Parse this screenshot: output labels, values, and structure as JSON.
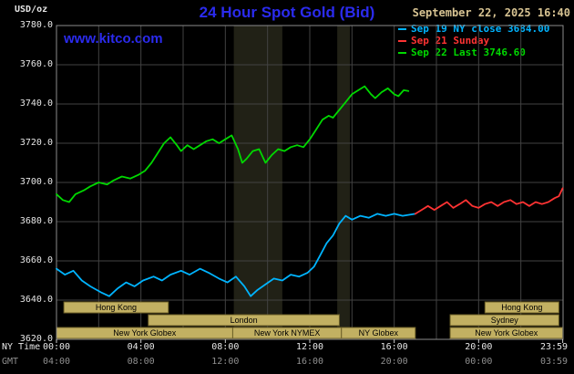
{
  "header": {
    "units_label": "USD/oz",
    "title": "24 Hour Spot Gold (Bid)",
    "datetime": "September 22, 2025 16:40",
    "watermark": "www.kitco.com"
  },
  "colors": {
    "background": "#000000",
    "plot_border": "#8c8c8c",
    "grid": "#424242",
    "band": "#212116",
    "title_blue": "#2b2bee",
    "datetime_tan": "#d7c392",
    "axis_text": "#e6e6e6",
    "gmt_text": "#8f8f8f",
    "session_fill": "#c2b062",
    "session_border": "#6e6128",
    "session_text": "#000000",
    "tick": "#cccccc"
  },
  "legend": [
    {
      "label": "Sep 19 NY close 3684.00",
      "color": "#00b4ff"
    },
    {
      "label": "Sep 21 Sunday",
      "color": "#ff3333"
    },
    {
      "label": "Sep 22 Last 3746.60",
      "color": "#00d800"
    }
  ],
  "chart_data": {
    "type": "line",
    "title": "24 Hour Spot Gold (Bid)",
    "ylabel": "USD/oz",
    "xlabel_rows": [
      "NY Time",
      "GMT"
    ],
    "xlim": [
      0,
      24
    ],
    "ylim": [
      3620,
      3780
    ],
    "y_tick_step": 20,
    "x_grid_step_hours": 2,
    "grid": true,
    "legend_position": "top-right",
    "y_tick_labels": [
      "3780.0",
      "3760.0",
      "3740.0",
      "3720.0",
      "3700.0",
      "3680.0",
      "3660.0",
      "3640.0",
      "3620.0"
    ],
    "x_tick_hours": [
      0,
      4,
      8,
      12,
      16,
      20,
      23.983
    ],
    "x_tick_labels_ny": [
      "00:00",
      "04:00",
      "08:00",
      "12:00",
      "16:00",
      "20:00",
      "23:59"
    ],
    "x_tick_labels_gmt": [
      "04:00",
      "08:00",
      "12:00",
      "16:00",
      "20:00",
      "00:00",
      "03:59"
    ],
    "series": [
      {
        "id": "sep19",
        "name": "Sep 19 NY close 3684.00",
        "color": "#00b4ff",
        "points": [
          [
            0,
            3656
          ],
          [
            0.4,
            3653
          ],
          [
            0.8,
            3655
          ],
          [
            1.2,
            3650
          ],
          [
            1.6,
            3647
          ],
          [
            2.1,
            3644
          ],
          [
            2.5,
            3642
          ],
          [
            2.9,
            3646
          ],
          [
            3.3,
            3649
          ],
          [
            3.7,
            3647
          ],
          [
            4.1,
            3650
          ],
          [
            4.6,
            3652
          ],
          [
            5,
            3650
          ],
          [
            5.4,
            3653
          ],
          [
            5.9,
            3655
          ],
          [
            6.3,
            3653
          ],
          [
            6.8,
            3656
          ],
          [
            7.2,
            3654
          ],
          [
            7.7,
            3651
          ],
          [
            8.1,
            3649
          ],
          [
            8.5,
            3652
          ],
          [
            8.9,
            3647
          ],
          [
            9.2,
            3642
          ],
          [
            9.5,
            3645
          ],
          [
            9.9,
            3648
          ],
          [
            10.3,
            3651
          ],
          [
            10.7,
            3650
          ],
          [
            11.1,
            3653
          ],
          [
            11.5,
            3652
          ],
          [
            11.9,
            3654
          ],
          [
            12.2,
            3657
          ],
          [
            12.5,
            3663
          ],
          [
            12.8,
            3669
          ],
          [
            13.1,
            3673
          ],
          [
            13.4,
            3679
          ],
          [
            13.7,
            3683
          ],
          [
            14,
            3681
          ],
          [
            14.4,
            3683
          ],
          [
            14.8,
            3682
          ],
          [
            15.2,
            3684
          ],
          [
            15.6,
            3683
          ],
          [
            16,
            3684
          ],
          [
            16.4,
            3683
          ],
          [
            17,
            3684
          ]
        ]
      },
      {
        "id": "sep21",
        "name": "Sep 21 Sunday",
        "color": "#ff3333",
        "points": [
          [
            17,
            3684
          ],
          [
            17.3,
            3686
          ],
          [
            17.6,
            3688
          ],
          [
            17.9,
            3686
          ],
          [
            18.2,
            3688
          ],
          [
            18.5,
            3690
          ],
          [
            18.8,
            3687
          ],
          [
            19.1,
            3689
          ],
          [
            19.4,
            3691
          ],
          [
            19.7,
            3688
          ],
          [
            20,
            3687
          ],
          [
            20.3,
            3689
          ],
          [
            20.6,
            3690
          ],
          [
            20.9,
            3688
          ],
          [
            21.2,
            3690
          ],
          [
            21.5,
            3691
          ],
          [
            21.8,
            3689
          ],
          [
            22.1,
            3690
          ],
          [
            22.4,
            3688
          ],
          [
            22.7,
            3690
          ],
          [
            23,
            3689
          ],
          [
            23.3,
            3690
          ],
          [
            23.6,
            3692
          ],
          [
            23.8,
            3693
          ],
          [
            23.98,
            3697
          ]
        ]
      },
      {
        "id": "sep22",
        "name": "Sep 22 Last 3746.60",
        "color": "#00d800",
        "points": [
          [
            0,
            3694
          ],
          [
            0.3,
            3691
          ],
          [
            0.6,
            3690
          ],
          [
            0.9,
            3694
          ],
          [
            1.3,
            3696
          ],
          [
            1.6,
            3698
          ],
          [
            2,
            3700
          ],
          [
            2.4,
            3699
          ],
          [
            2.7,
            3701
          ],
          [
            3.1,
            3703
          ],
          [
            3.5,
            3702
          ],
          [
            3.9,
            3704
          ],
          [
            4.2,
            3706
          ],
          [
            4.5,
            3710
          ],
          [
            4.8,
            3715
          ],
          [
            5.1,
            3720
          ],
          [
            5.4,
            3723
          ],
          [
            5.7,
            3719
          ],
          [
            5.9,
            3716
          ],
          [
            6.2,
            3719
          ],
          [
            6.5,
            3717
          ],
          [
            6.8,
            3719
          ],
          [
            7.1,
            3721
          ],
          [
            7.4,
            3722
          ],
          [
            7.7,
            3720
          ],
          [
            8,
            3722
          ],
          [
            8.3,
            3724
          ],
          [
            8.6,
            3717
          ],
          [
            8.8,
            3710
          ],
          [
            9,
            3712
          ],
          [
            9.3,
            3716
          ],
          [
            9.6,
            3717
          ],
          [
            9.9,
            3710
          ],
          [
            10.2,
            3714
          ],
          [
            10.5,
            3717
          ],
          [
            10.8,
            3716
          ],
          [
            11.1,
            3718
          ],
          [
            11.4,
            3719
          ],
          [
            11.7,
            3718
          ],
          [
            12,
            3722
          ],
          [
            12.3,
            3727
          ],
          [
            12.6,
            3732
          ],
          [
            12.9,
            3734
          ],
          [
            13.1,
            3733
          ],
          [
            13.4,
            3737
          ],
          [
            13.7,
            3741
          ],
          [
            14,
            3745
          ],
          [
            14.3,
            3747
          ],
          [
            14.6,
            3749
          ],
          [
            14.9,
            3745
          ],
          [
            15.1,
            3743
          ],
          [
            15.4,
            3746
          ],
          [
            15.7,
            3748
          ],
          [
            16,
            3745
          ],
          [
            16.2,
            3744
          ],
          [
            16.45,
            3747
          ],
          [
            16.67,
            3746.6
          ]
        ]
      }
    ],
    "bands": [
      {
        "x0": 8.4,
        "x1": 10.7
      },
      {
        "x0": 13.3,
        "x1": 13.9
      }
    ],
    "sessions": [
      {
        "row": 0,
        "label": "Hong Kong",
        "x0": 0.35,
        "x1": 5.3
      },
      {
        "row": 0,
        "label": "Hong Kong",
        "x0": 20.3,
        "x1": 23.8
      },
      {
        "row": 1,
        "label": "London",
        "x0": 4.35,
        "x1": 13.4
      },
      {
        "row": 1,
        "label": "Sydney",
        "x0": 18.65,
        "x1": 23.8
      },
      {
        "row": 2,
        "label": "New York Globex",
        "x0": 0,
        "x1": 8.35
      },
      {
        "row": 2,
        "label": "New York NYMEX",
        "x0": 8.35,
        "x1": 13.5
      },
      {
        "row": 2,
        "label": "NY Globex",
        "x0": 13.5,
        "x1": 17
      },
      {
        "row": 2,
        "label": "New York Globex",
        "x0": 18.65,
        "x1": 23.98
      }
    ]
  }
}
